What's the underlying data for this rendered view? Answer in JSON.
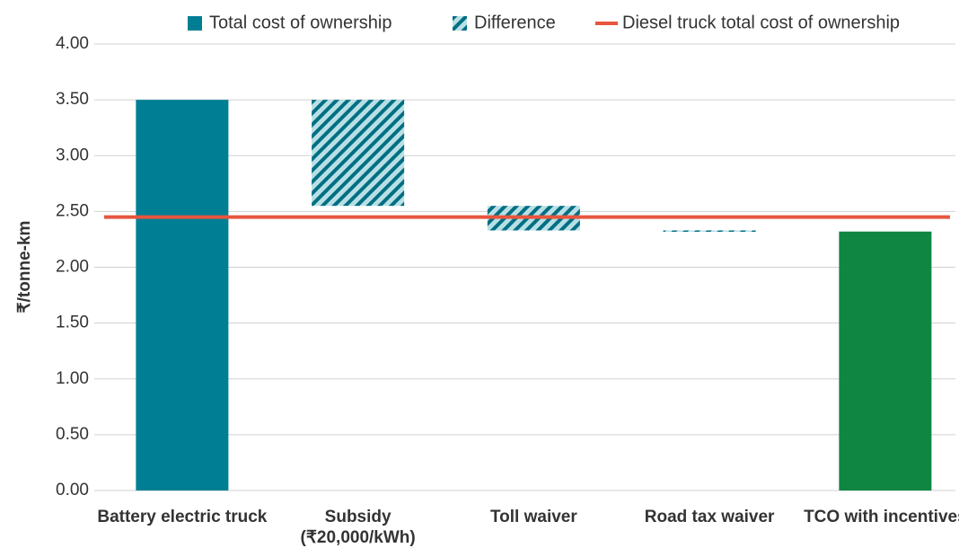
{
  "chart_data": {
    "type": "waterfall",
    "ylabel": "₹/tonne-km",
    "categories": [
      "Battery electric truck",
      "Subsidy (₹20,000/kWh)",
      "Toll waiver",
      "Road tax waiver",
      "TCO with incentives"
    ],
    "series": [
      {
        "name": "Total cost of ownership",
        "color": "#007f94",
        "values": [
          3.5,
          null,
          null,
          null,
          2.32
        ],
        "total_colors": [
          "#007f94",
          null,
          null,
          null,
          "#0f8642"
        ]
      },
      {
        "name": "Difference",
        "color": "#007f94",
        "values": [
          null,
          -0.95,
          -0.22,
          -0.01,
          null
        ]
      }
    ],
    "reference_line": {
      "name": "Diesel truck total cost of ownership",
      "color": "#e8553e",
      "value": 2.45
    },
    "ylim": [
      0,
      4
    ],
    "yticks": [
      {
        "value": 0,
        "label": "0.00"
      },
      {
        "value": 0.5,
        "label": "0.50"
      },
      {
        "value": 1,
        "label": "1.00"
      },
      {
        "value": 1.5,
        "label": "1.50"
      },
      {
        "value": 2,
        "label": "2.00"
      },
      {
        "value": 2.5,
        "label": "2.50"
      },
      {
        "value": 3,
        "label": "3.00"
      },
      {
        "value": 3.5,
        "label": "3.50"
      },
      {
        "value": 4,
        "label": "4.00"
      }
    ],
    "grid": true,
    "legend": "top"
  }
}
